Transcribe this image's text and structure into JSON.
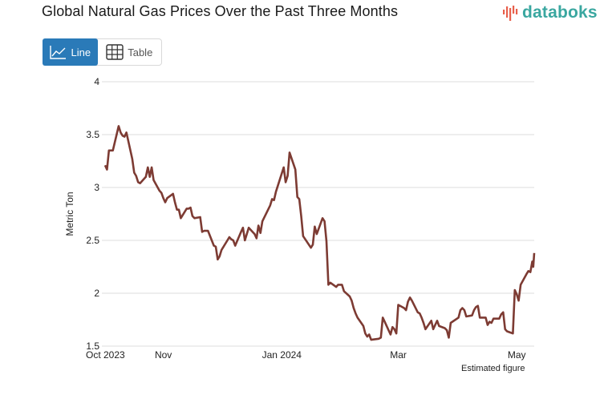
{
  "header": {
    "title": "Global Natural Gas Prices Over the Past Three Months",
    "brand": "databoks",
    "brand_color": "#3aa7a0",
    "brand_accent_color": "#e8604c"
  },
  "view_toggle": {
    "options": [
      {
        "label": "Line",
        "icon": "line-chart-icon",
        "active": true
      },
      {
        "label": "Table",
        "icon": "table-grid-icon",
        "active": false
      }
    ],
    "active_color": "#2a7ab8"
  },
  "footnote": "Estimated figure",
  "chart_data": {
    "type": "line",
    "title": "Global Natural Gas Prices Over the Past Three Months",
    "xlabel": "",
    "ylabel": "Metric Ton",
    "ylim": [
      1.5,
      4
    ],
    "yticks": [
      1.5,
      2,
      2.5,
      3,
      3.5,
      4
    ],
    "ytick_labels": [
      "1.5",
      "2",
      "2.5",
      "3",
      "3.5",
      "4"
    ],
    "grid": true,
    "legend": "none",
    "x_start": "2023-10-02",
    "x_end": "2024-05-10",
    "xtick_labels": [
      {
        "label": "Oct 2023",
        "date": "2023-10-02"
      },
      {
        "label": "Nov",
        "date": "2023-11-01"
      },
      {
        "label": "Jan 2024",
        "date": "2024-01-01"
      },
      {
        "label": "Mar",
        "date": "2024-03-01"
      },
      {
        "label": "May",
        "date": "2024-05-01"
      }
    ],
    "series": [
      {
        "name": "Natural Gas Price",
        "color": "#7d3b33",
        "points": [
          [
            "2023-10-02",
            3.21
          ],
          [
            "2023-10-03",
            3.17
          ],
          [
            "2023-10-04",
            3.35
          ],
          [
            "2023-10-05",
            3.35
          ],
          [
            "2023-10-06",
            3.35
          ],
          [
            "2023-10-09",
            3.58
          ],
          [
            "2023-10-10",
            3.52
          ],
          [
            "2023-10-11",
            3.49
          ],
          [
            "2023-10-12",
            3.48
          ],
          [
            "2023-10-13",
            3.52
          ],
          [
            "2023-10-16",
            3.27
          ],
          [
            "2023-10-17",
            3.14
          ],
          [
            "2023-10-18",
            3.11
          ],
          [
            "2023-10-19",
            3.05
          ],
          [
            "2023-10-20",
            3.04
          ],
          [
            "2023-10-23",
            3.1
          ],
          [
            "2023-10-24",
            3.19
          ],
          [
            "2023-10-25",
            3.1
          ],
          [
            "2023-10-26",
            3.19
          ],
          [
            "2023-10-27",
            3.07
          ],
          [
            "2023-10-30",
            2.97
          ],
          [
            "2023-10-31",
            2.95
          ],
          [
            "2023-11-01",
            2.9
          ],
          [
            "2023-11-02",
            2.86
          ],
          [
            "2023-11-03",
            2.9
          ],
          [
            "2023-11-06",
            2.94
          ],
          [
            "2023-11-07",
            2.86
          ],
          [
            "2023-11-08",
            2.79
          ],
          [
            "2023-11-09",
            2.79
          ],
          [
            "2023-11-10",
            2.71
          ],
          [
            "2023-11-13",
            2.8
          ],
          [
            "2023-11-14",
            2.8
          ],
          [
            "2023-11-15",
            2.81
          ],
          [
            "2023-11-16",
            2.73
          ],
          [
            "2023-11-17",
            2.71
          ],
          [
            "2023-11-20",
            2.72
          ],
          [
            "2023-11-21",
            2.58
          ],
          [
            "2023-11-22",
            2.59
          ],
          [
            "2023-11-24",
            2.59
          ],
          [
            "2023-11-27",
            2.45
          ],
          [
            "2023-11-28",
            2.44
          ],
          [
            "2023-11-29",
            2.32
          ],
          [
            "2023-11-30",
            2.35
          ],
          [
            "2023-12-01",
            2.41
          ],
          [
            "2023-12-04",
            2.5
          ],
          [
            "2023-12-05",
            2.53
          ],
          [
            "2023-12-06",
            2.51
          ],
          [
            "2023-12-07",
            2.5
          ],
          [
            "2023-12-08",
            2.45
          ],
          [
            "2023-12-11",
            2.58
          ],
          [
            "2023-12-12",
            2.62
          ],
          [
            "2023-12-13",
            2.5
          ],
          [
            "2023-12-14",
            2.56
          ],
          [
            "2023-12-15",
            2.62
          ],
          [
            "2023-12-18",
            2.56
          ],
          [
            "2023-12-19",
            2.52
          ],
          [
            "2023-12-20",
            2.64
          ],
          [
            "2023-12-21",
            2.57
          ],
          [
            "2023-12-22",
            2.68
          ],
          [
            "2023-12-26",
            2.83
          ],
          [
            "2023-12-27",
            2.89
          ],
          [
            "2023-12-28",
            2.88
          ],
          [
            "2023-12-29",
            2.96
          ],
          [
            "2024-01-02",
            3.19
          ],
          [
            "2024-01-03",
            3.05
          ],
          [
            "2024-01-04",
            3.11
          ],
          [
            "2024-01-05",
            3.33
          ],
          [
            "2024-01-08",
            3.17
          ],
          [
            "2024-01-09",
            2.91
          ],
          [
            "2024-01-10",
            2.89
          ],
          [
            "2024-01-11",
            2.73
          ],
          [
            "2024-01-12",
            2.54
          ],
          [
            "2024-01-16",
            2.43
          ],
          [
            "2024-01-17",
            2.46
          ],
          [
            "2024-01-18",
            2.63
          ],
          [
            "2024-01-19",
            2.56
          ],
          [
            "2024-01-22",
            2.71
          ],
          [
            "2024-01-23",
            2.68
          ],
          [
            "2024-01-24",
            2.49
          ],
          [
            "2024-01-25",
            2.08
          ],
          [
            "2024-01-26",
            2.1
          ],
          [
            "2024-01-29",
            2.06
          ],
          [
            "2024-01-30",
            2.08
          ],
          [
            "2024-01-31",
            2.08
          ],
          [
            "2024-02-01",
            2.08
          ],
          [
            "2024-02-02",
            2.02
          ],
          [
            "2024-02-05",
            1.97
          ],
          [
            "2024-02-06",
            1.93
          ],
          [
            "2024-02-07",
            1.86
          ],
          [
            "2024-02-08",
            1.81
          ],
          [
            "2024-02-09",
            1.77
          ],
          [
            "2024-02-12",
            1.69
          ],
          [
            "2024-02-13",
            1.62
          ],
          [
            "2024-02-14",
            1.59
          ],
          [
            "2024-02-15",
            1.61
          ],
          [
            "2024-02-16",
            1.56
          ],
          [
            "2024-02-20",
            1.57
          ],
          [
            "2024-02-21",
            1.58
          ],
          [
            "2024-02-22",
            1.77
          ],
          [
            "2024-02-23",
            1.73
          ],
          [
            "2024-02-26",
            1.61
          ],
          [
            "2024-02-27",
            1.68
          ],
          [
            "2024-02-28",
            1.66
          ],
          [
            "2024-02-29",
            1.62
          ],
          [
            "2024-03-01",
            1.89
          ],
          [
            "2024-03-04",
            1.86
          ],
          [
            "2024-03-05",
            1.84
          ],
          [
            "2024-03-06",
            1.92
          ],
          [
            "2024-03-07",
            1.96
          ],
          [
            "2024-03-08",
            1.93
          ],
          [
            "2024-03-11",
            1.82
          ],
          [
            "2024-03-12",
            1.81
          ],
          [
            "2024-03-13",
            1.77
          ],
          [
            "2024-03-14",
            1.72
          ],
          [
            "2024-03-15",
            1.66
          ],
          [
            "2024-03-18",
            1.74
          ],
          [
            "2024-03-19",
            1.66
          ],
          [
            "2024-03-20",
            1.7
          ],
          [
            "2024-03-21",
            1.74
          ],
          [
            "2024-03-22",
            1.69
          ],
          [
            "2024-03-25",
            1.67
          ],
          [
            "2024-03-26",
            1.65
          ],
          [
            "2024-03-27",
            1.58
          ],
          [
            "2024-03-28",
            1.72
          ],
          [
            "2024-04-01",
            1.77
          ],
          [
            "2024-04-02",
            1.84
          ],
          [
            "2024-04-03",
            1.86
          ],
          [
            "2024-04-04",
            1.84
          ],
          [
            "2024-04-05",
            1.78
          ],
          [
            "2024-04-08",
            1.79
          ],
          [
            "2024-04-09",
            1.84
          ],
          [
            "2024-04-10",
            1.87
          ],
          [
            "2024-04-11",
            1.88
          ],
          [
            "2024-04-12",
            1.77
          ],
          [
            "2024-04-15",
            1.77
          ],
          [
            "2024-04-16",
            1.7
          ],
          [
            "2024-04-17",
            1.73
          ],
          [
            "2024-04-18",
            1.72
          ],
          [
            "2024-04-19",
            1.76
          ],
          [
            "2024-04-22",
            1.76
          ],
          [
            "2024-04-23",
            1.8
          ],
          [
            "2024-04-24",
            1.82
          ],
          [
            "2024-04-25",
            1.66
          ],
          [
            "2024-04-26",
            1.64
          ],
          [
            "2024-04-29",
            1.62
          ],
          [
            "2024-04-30",
            2.03
          ],
          [
            "2024-05-01",
            1.99
          ],
          [
            "2024-05-02",
            1.93
          ],
          [
            "2024-05-03",
            2.08
          ],
          [
            "2024-05-06",
            2.18
          ],
          [
            "2024-05-07",
            2.21
          ],
          [
            "2024-05-08",
            2.2
          ],
          [
            "2024-05-09",
            2.3
          ],
          [
            "2024-05-09T12",
            2.25
          ],
          [
            "2024-05-10",
            2.38
          ]
        ]
      }
    ],
    "annotations": [
      "Estimated figure"
    ]
  }
}
